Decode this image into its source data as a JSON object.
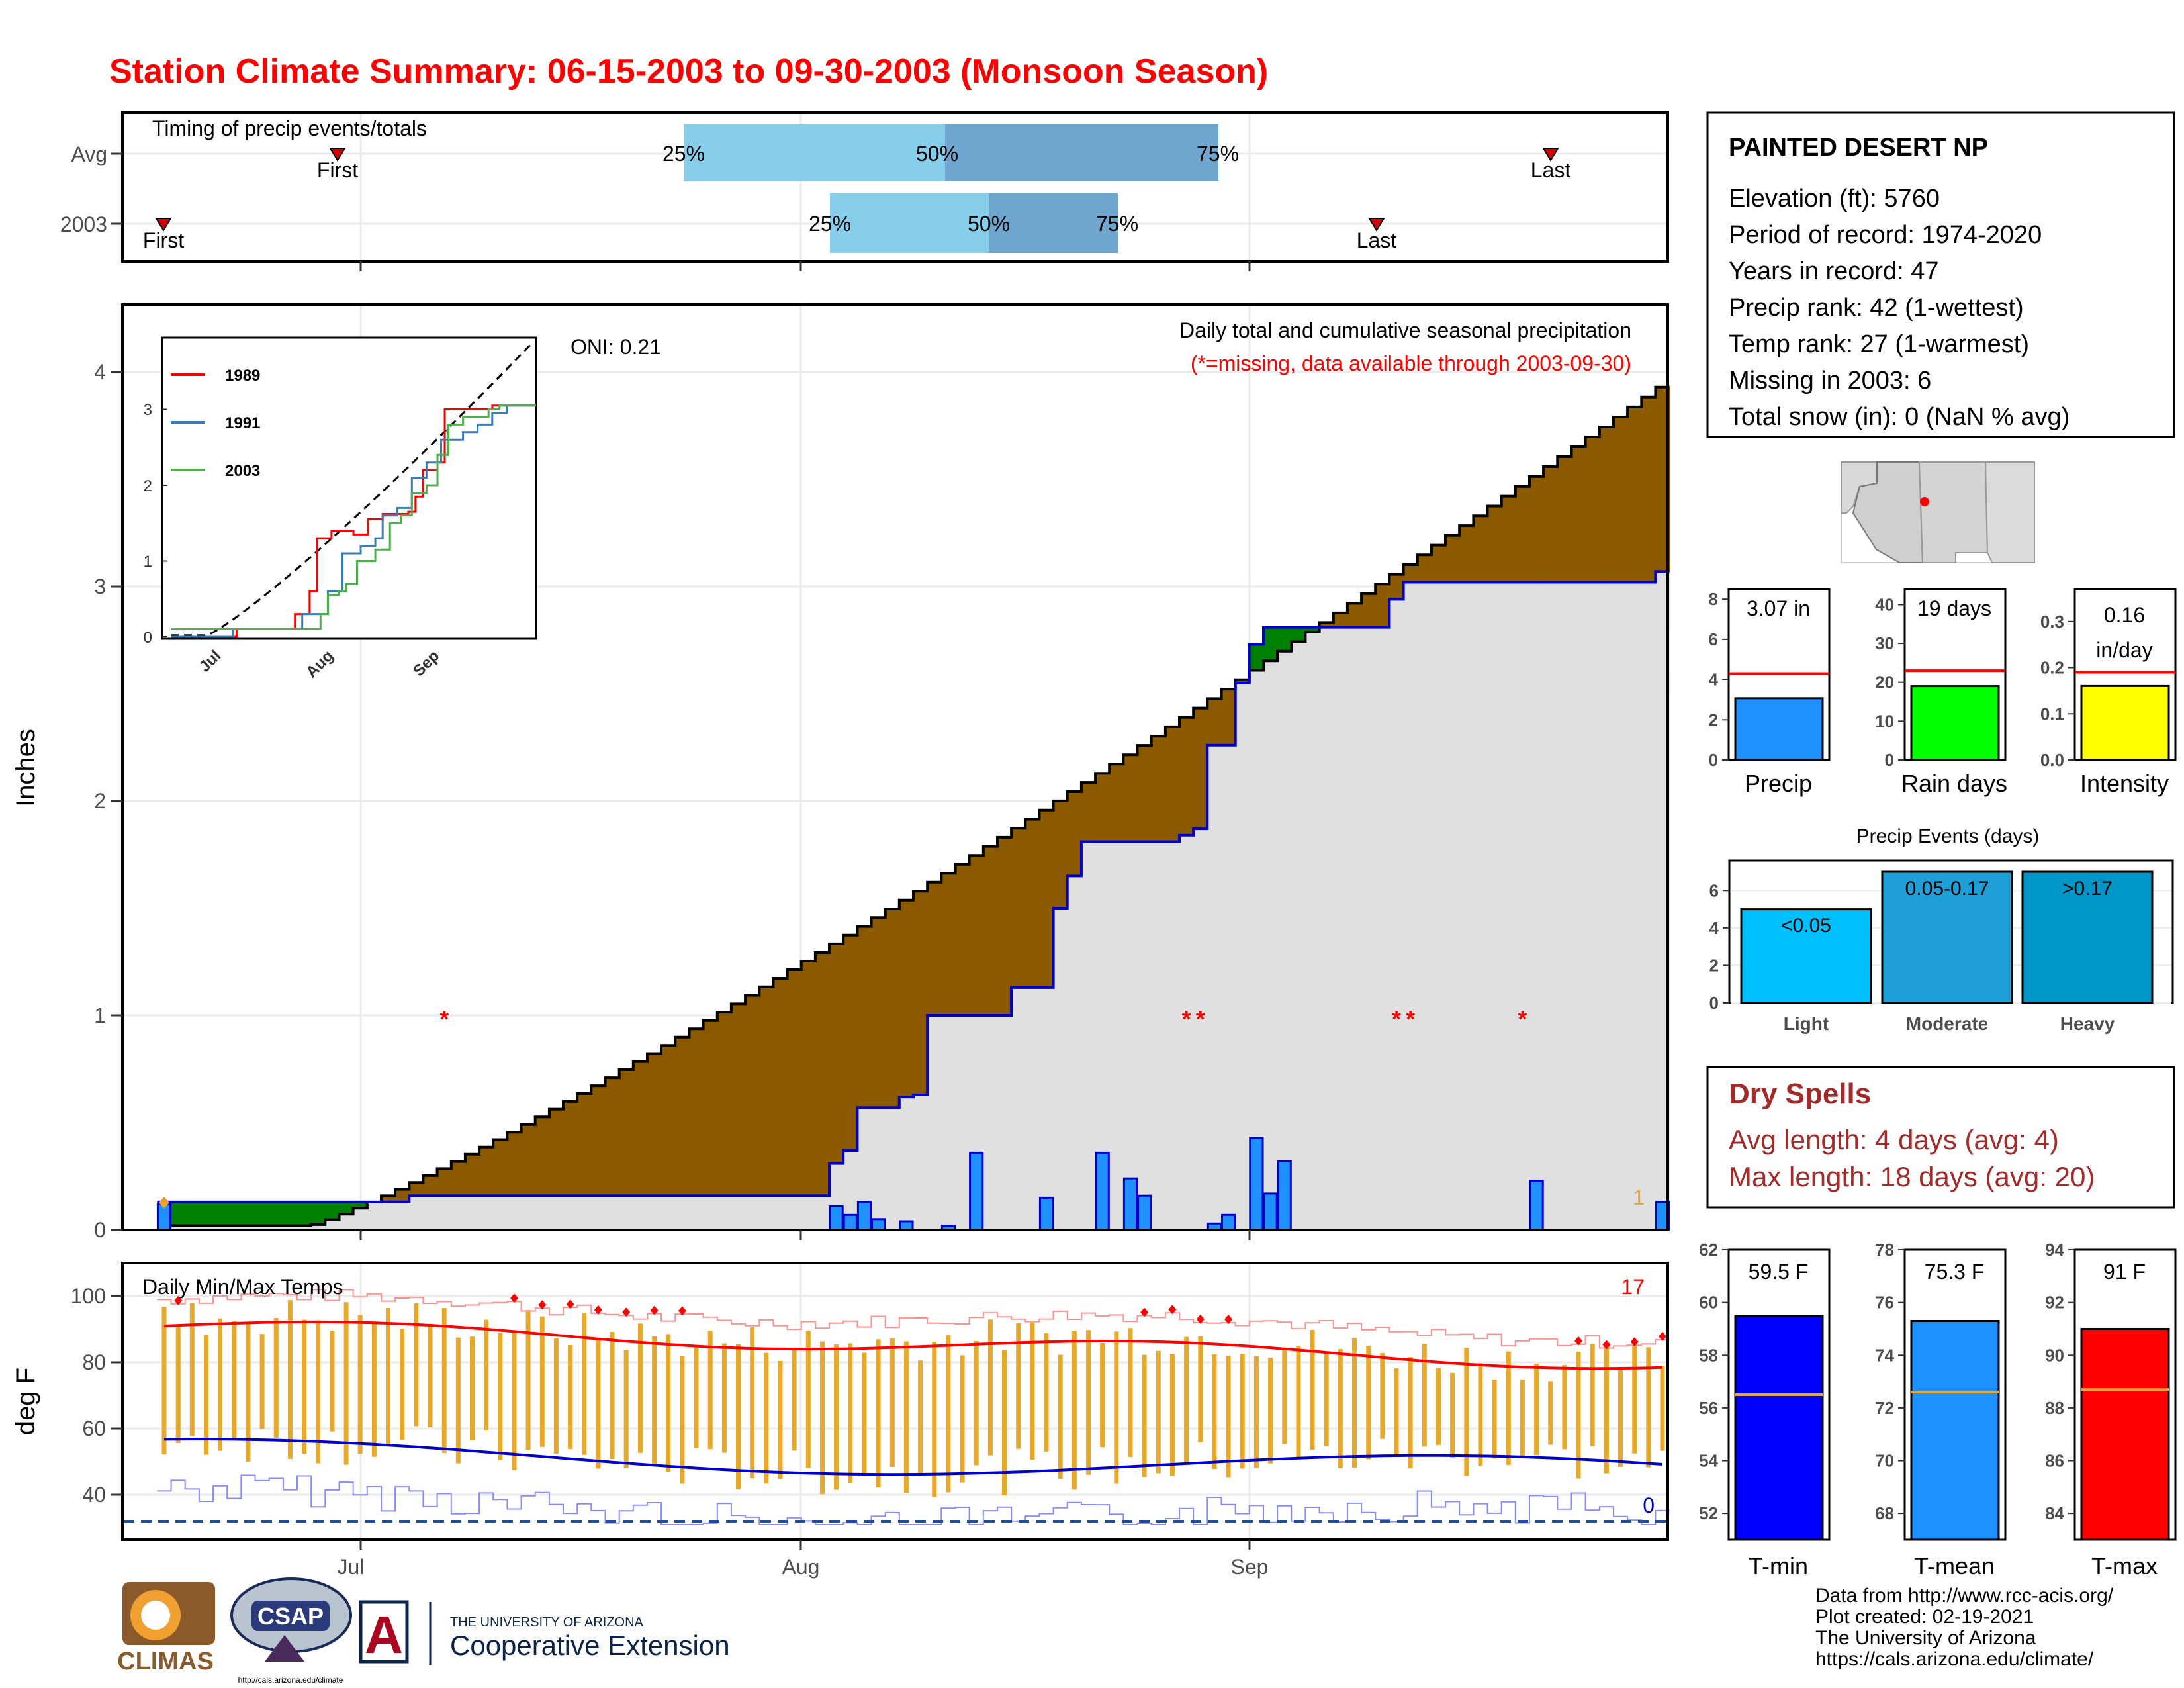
{
  "title": "Station Climate Summary: 06-15-2003 to 09-30-2003 (Monsoon Season)",
  "colors": {
    "title": "#ff0000",
    "cumulative_fill_above": "#8b5a00",
    "cumulative_fill_below": "#008000",
    "area_grey": "#e0e0e0",
    "daily_bar": "#1e90ff",
    "daily_bar_border": "#0000cd",
    "quartile_light": "#87ceeb",
    "quartile_dark": "#6fa6cf",
    "temp_bar": "#e8a82a",
    "tmax_line": "#ff0000",
    "tmin_line": "#0000cd",
    "precip_bar": "#1e90ff",
    "raindays_bar": "#00ff00",
    "intensity_bar": "#ffff00",
    "light_bar": "#00bfff",
    "moderate_bar": "#1e9fd8",
    "heavy_bar": "#0097c8",
    "tmin_bar": "#0000ff",
    "tmean_bar": "#1e90ff",
    "tmax_bar": "#ff0000",
    "dryspell_text": "#a52a2a"
  },
  "timing": {
    "title": "Timing of precip events/totals",
    "rows": [
      "Avg",
      "2003"
    ],
    "first_label": "First",
    "last_label": "Last",
    "q25": "25%",
    "q50": "50%",
    "q75": "75%"
  },
  "station": {
    "name": "PAINTED DESERT NP",
    "lines": [
      "Elevation (ft): 5760",
      "Period of record: 1974-2020",
      "Years in record: 47",
      "Precip rank: 42 (1-wettest)",
      "Temp rank: 27 (1-warmest)",
      "Missing in 2003: 6",
      "Total snow (in): 0 (NaN % avg)"
    ]
  },
  "main_plot": {
    "ylabel": "Inches",
    "subtitle": "Daily total and cumulative seasonal precipitation",
    "missing_note": "(*=missing, data available through 2003-09-30)",
    "oni": "ONI: 0.21",
    "corner_count": "1",
    "month_labels": [
      "Jul",
      "Aug",
      "Sep"
    ]
  },
  "temp_plot": {
    "title": "Daily Min/Max Temps",
    "ylabel": "deg F",
    "count_high": "17",
    "count_low": "0"
  },
  "summary_bars": {
    "precip": {
      "label": "Precip",
      "value_text": "3.07 in"
    },
    "raindays": {
      "label": "Rain days",
      "value_text": "19 days"
    },
    "intensity": {
      "label": "Intensity",
      "value_text_1": "0.16",
      "value_text_2": "in/day"
    }
  },
  "events": {
    "title": "Precip Events (days)",
    "categories": [
      "Light",
      "Moderate",
      "Heavy"
    ],
    "bar_labels": [
      "<0.05",
      "0.05-0.17",
      ">0.17"
    ]
  },
  "dry_spells": {
    "title": "Dry Spells",
    "line1": "Avg length: 4 days (avg: 4)",
    "line2": "Max length: 18 days (avg: 20)"
  },
  "temp_bars": {
    "tmin": {
      "label": "T-min",
      "value_text": "59.5 F"
    },
    "tmean": {
      "label": "T-mean",
      "value_text": "75.3 F"
    },
    "tmax": {
      "label": "T-max",
      "value_text": "91 F"
    }
  },
  "footer": {
    "lines": [
      "Data from http://www.rcc-acis.org/",
      "Plot created: 02-19-2021",
      "The University of Arizona",
      "https://cals.arizona.edu/climate/"
    ],
    "climas": "CLIMAS",
    "csap": "CSAP",
    "csap_url": "http://cals.arizona.edu/climate",
    "ua_small": "THE UNIVERSITY OF ARIZONA",
    "ua_big": "Cooperative Extension",
    "ua_letter": "A"
  },
  "chart_data": [
    {
      "type": "line",
      "title": "Daily total and cumulative seasonal precipitation",
      "ylabel": "Inches",
      "ylim": [
        0,
        4.3
      ],
      "x_range": [
        "2003-06-15",
        "2003-09-30"
      ],
      "ticks_y": [
        0,
        1,
        2,
        3,
        4
      ],
      "cumulative_2003": [
        [
          "2003-06-15",
          0.13
        ],
        [
          "2003-07-03",
          0.16
        ],
        [
          "2003-08-01",
          0.16
        ],
        [
          "2003-08-02",
          0.31
        ],
        [
          "2003-08-03",
          0.37
        ],
        [
          "2003-08-04",
          0.57
        ],
        [
          "2003-08-07",
          0.62
        ],
        [
          "2003-08-08",
          0.63
        ],
        [
          "2003-08-09",
          1.0
        ],
        [
          "2003-08-15",
          1.13
        ],
        [
          "2003-08-18",
          1.5
        ],
        [
          "2003-08-19",
          1.65
        ],
        [
          "2003-08-20",
          1.81
        ],
        [
          "2003-08-27",
          1.84
        ],
        [
          "2003-08-28",
          1.87
        ],
        [
          "2003-08-29",
          2.26
        ],
        [
          "2003-08-31",
          2.55
        ],
        [
          "2003-09-01",
          2.73
        ],
        [
          "2003-09-02",
          2.81
        ],
        [
          "2003-09-11",
          2.94
        ],
        [
          "2003-09-12",
          3.02
        ],
        [
          "2003-09-30",
          3.07
        ]
      ],
      "cumulative_avg_end": 3.93,
      "daily_precip_2003": [
        [
          "2003-06-15",
          0.12
        ],
        [
          "2003-08-02",
          0.11
        ],
        [
          "2003-08-03",
          0.07
        ],
        [
          "2003-08-04",
          0.13
        ],
        [
          "2003-08-05",
          0.05
        ],
        [
          "2003-08-07",
          0.04
        ],
        [
          "2003-08-10",
          0.02
        ],
        [
          "2003-08-12",
          0.36
        ],
        [
          "2003-08-17",
          0.15
        ],
        [
          "2003-08-21",
          0.36
        ],
        [
          "2003-08-23",
          0.24
        ],
        [
          "2003-08-24",
          0.16
        ],
        [
          "2003-08-29",
          0.03
        ],
        [
          "2003-08-30",
          0.07
        ],
        [
          "2003-09-01",
          0.43
        ],
        [
          "2003-09-02",
          0.17
        ],
        [
          "2003-09-03",
          0.32
        ],
        [
          "2003-09-21",
          0.23
        ],
        [
          "2003-09-30",
          0.13
        ]
      ],
      "missing_days": [
        "2003-07-05",
        "2003-08-27",
        "2003-08-28",
        "2003-09-11",
        "2003-09-12",
        "2003-09-20"
      ]
    },
    {
      "type": "line",
      "title": "Inset cumulative precipitation",
      "series": [
        {
          "name": "1989",
          "color": "#ff0000"
        },
        {
          "name": "1991",
          "color": "#377eb8"
        },
        {
          "name": "2003",
          "color": "#4daf4a"
        }
      ],
      "ylim": [
        0,
        4.3
      ],
      "x_ticks": [
        "Jul",
        "Aug",
        "Sep"
      ]
    },
    {
      "type": "bar",
      "title": "Daily Min/Max Temps",
      "ylabel": "deg F",
      "ylim": [
        30,
        107
      ],
      "ticks_y": [
        40,
        60,
        80,
        100
      ],
      "tmax_avg_start": 91,
      "tmax_avg_end": 80,
      "tmin_avg_start": 53,
      "tmin_avg_end": 47,
      "freeze_line": 32
    },
    {
      "type": "bar",
      "categories": [
        "Precip",
        "Rain days",
        "Intensity"
      ],
      "values": [
        3.07,
        19,
        0.16
      ],
      "averages": [
        4.3,
        23,
        0.19
      ],
      "ylims": [
        [
          0,
          8.5
        ],
        [
          0,
          44
        ],
        [
          0,
          0.37
        ]
      ]
    },
    {
      "type": "bar",
      "title": "Precip Events (days)",
      "categories": [
        "Light",
        "Moderate",
        "Heavy"
      ],
      "values": [
        5,
        7,
        7
      ],
      "ylim": [
        0,
        7.6
      ]
    },
    {
      "type": "bar",
      "categories": [
        "T-min",
        "T-mean",
        "T-max"
      ],
      "values": [
        59.5,
        75.3,
        91
      ],
      "averages": [
        56.5,
        72.6,
        88.7
      ],
      "ylims": [
        [
          51,
          62
        ],
        [
          67,
          78
        ],
        [
          83,
          94
        ]
      ]
    }
  ]
}
